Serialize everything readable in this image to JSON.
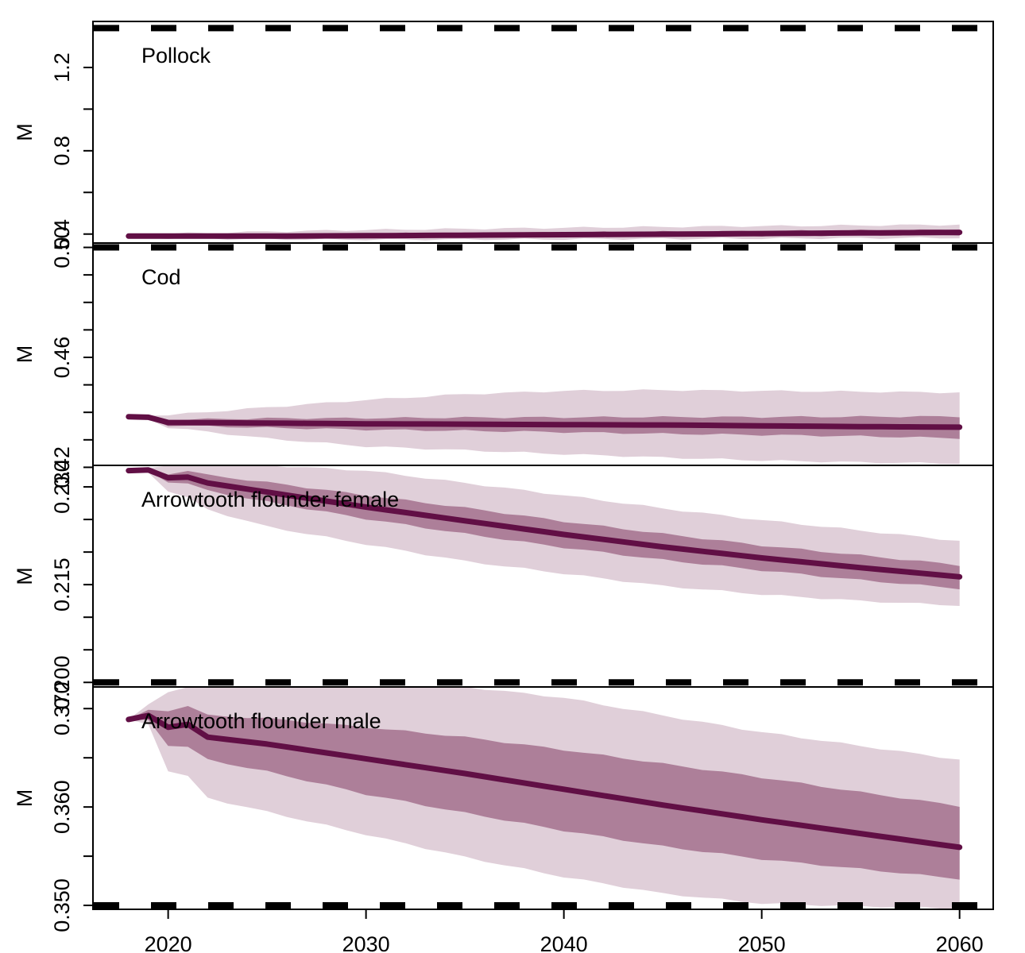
{
  "chart_data": {
    "type": "line",
    "xlim": [
      2016.2,
      2061.7
    ],
    "x_ticks": [
      2020,
      2030,
      2040,
      2050,
      2060
    ],
    "x_tick_labels": [
      "2020",
      "2030",
      "2040",
      "2050",
      "2060"
    ],
    "ylabel": "M",
    "colors": {
      "line": "#610f45",
      "inner_band": "#ad7f99",
      "outer_band": "#e0cfd9",
      "reference": "#000000",
      "frame": "#000000"
    },
    "panels": [
      {
        "label": "Pollock",
        "ylim": [
          0.357,
          1.421
        ],
        "y_ticks": [
          0.4,
          0.6,
          0.8,
          1.0,
          1.2
        ],
        "y_tick_labels": [
          "0.4",
          "",
          "0.8",
          "",
          "1.2"
        ],
        "reference_lines": [
          1.389
        ],
        "years": [
          2018,
          2024,
          2030,
          2036,
          2042,
          2048,
          2054,
          2060
        ],
        "median": [
          0.39,
          0.39,
          0.392,
          0.395,
          0.398,
          0.401,
          0.405,
          0.408
        ],
        "inner_lower": [
          0.385,
          0.384,
          0.385,
          0.387,
          0.389,
          0.391,
          0.394,
          0.396
        ],
        "inner_upper": [
          0.395,
          0.398,
          0.402,
          0.405,
          0.409,
          0.413,
          0.417,
          0.42
        ],
        "outer_lower": [
          0.382,
          0.376,
          0.373,
          0.374,
          0.376,
          0.378,
          0.38,
          0.382
        ],
        "outer_upper": [
          0.398,
          0.41,
          0.42,
          0.426,
          0.432,
          0.437,
          0.441,
          0.445
        ]
      },
      {
        "label": "Cod",
        "ylim": [
          0.4207,
          0.5016
        ],
        "y_ticks": [
          0.42,
          0.43,
          0.44,
          0.45,
          0.46,
          0.47,
          0.48,
          0.49,
          0.5
        ],
        "y_tick_labels": [
          "0.42",
          "",
          "",
          "",
          "0.46",
          "",
          "",
          "",
          "0.50"
        ],
        "reference_lines": [
          0.5
        ],
        "years": [
          2018,
          2019,
          2020,
          2025,
          2030,
          2035,
          2040,
          2045,
          2050,
          2055,
          2060
        ],
        "median": [
          0.4384,
          0.4382,
          0.4363,
          0.4361,
          0.4358,
          0.4357,
          0.4355,
          0.4354,
          0.4351,
          0.4348,
          0.4346
        ],
        "inner_lower": [
          0.4384,
          0.4378,
          0.4353,
          0.4344,
          0.4337,
          0.4333,
          0.4328,
          0.4322,
          0.4318,
          0.4313,
          0.4306
        ],
        "inner_upper": [
          0.4384,
          0.4386,
          0.4373,
          0.4378,
          0.4379,
          0.4381,
          0.4382,
          0.4383,
          0.4383,
          0.4384,
          0.4385
        ],
        "outer_lower": [
          0.4384,
          0.4375,
          0.4345,
          0.4305,
          0.4276,
          0.4262,
          0.4248,
          0.4236,
          0.4225,
          0.4218,
          0.4214
        ],
        "outer_upper": [
          0.4384,
          0.4391,
          0.439,
          0.4418,
          0.4445,
          0.4466,
          0.4478,
          0.4481,
          0.4478,
          0.4475,
          0.4472
        ]
      },
      {
        "label": "Arrowtooth flounder female",
        "ylim": [
          0.1993,
          0.2333
        ],
        "y_ticks": [
          0.2,
          0.205,
          0.21,
          0.215,
          0.22,
          0.225,
          0.23
        ],
        "y_tick_labels": [
          "0.200",
          "",
          "",
          "0.215",
          "",
          "",
          "0.230"
        ],
        "reference_lines": [
          0.2
        ],
        "years": [
          2018,
          2019,
          2020,
          2021,
          2022,
          2025,
          2030,
          2035,
          2040,
          2045,
          2050,
          2055,
          2060
        ],
        "median": [
          0.2325,
          0.2326,
          0.2314,
          0.2315,
          0.2306,
          0.2292,
          0.2269,
          0.2248,
          0.2227,
          0.2208,
          0.2191,
          0.2176,
          0.2162
        ],
        "inner_lower": [
          0.2325,
          0.2324,
          0.2308,
          0.2305,
          0.2294,
          0.2277,
          0.2251,
          0.2228,
          0.2207,
          0.2188,
          0.2172,
          0.2157,
          0.2144
        ],
        "inner_upper": [
          0.2325,
          0.2328,
          0.232,
          0.2325,
          0.2318,
          0.2307,
          0.2287,
          0.2268,
          0.2247,
          0.2228,
          0.221,
          0.2195,
          0.218
        ],
        "outer_lower": [
          0.2325,
          0.2322,
          0.2294,
          0.2283,
          0.2265,
          0.2239,
          0.2212,
          0.2186,
          0.2167,
          0.2148,
          0.2135,
          0.2125,
          0.2118
        ],
        "outer_upper": [
          0.2325,
          0.233,
          0.2333,
          0.2333,
          0.2333,
          0.2333,
          0.2325,
          0.2306,
          0.2287,
          0.2267,
          0.2249,
          0.2233,
          0.2217
        ]
      },
      {
        "label": "Arrowtooth flounder male",
        "ylim": [
          0.3496,
          0.3722
        ],
        "y_ticks": [
          0.35,
          0.355,
          0.36,
          0.365,
          0.37
        ],
        "y_tick_labels": [
          "0.350",
          "",
          "0.360",
          "",
          "0.370"
        ],
        "reference_lines": [
          0.35
        ],
        "years": [
          2018,
          2019,
          2020,
          2021,
          2022,
          2025,
          2030,
          2035,
          2040,
          2045,
          2050,
          2055,
          2060
        ],
        "median": [
          0.3689,
          0.3693,
          0.3681,
          0.3684,
          0.3671,
          0.3664,
          0.3649,
          0.3634,
          0.3618,
          0.3602,
          0.3587,
          0.3573,
          0.3559
        ],
        "inner_lower": [
          0.3689,
          0.3688,
          0.3663,
          0.3661,
          0.3648,
          0.3636,
          0.3613,
          0.3594,
          0.3576,
          0.356,
          0.3547,
          0.3537,
          0.3527
        ],
        "inner_upper": [
          0.3689,
          0.3698,
          0.3698,
          0.3703,
          0.3693,
          0.369,
          0.3681,
          0.3671,
          0.3658,
          0.3644,
          0.363,
          0.3615,
          0.3601
        ],
        "outer_lower": [
          0.3689,
          0.3684,
          0.3637,
          0.3631,
          0.3609,
          0.3595,
          0.3572,
          0.3549,
          0.3529,
          0.3512,
          0.3502,
          0.3499,
          0.3497
        ],
        "outer_upper": [
          0.3689,
          0.3705,
          0.3717,
          0.3721,
          0.3722,
          0.3722,
          0.3722,
          0.3722,
          0.3711,
          0.3693,
          0.3676,
          0.3662,
          0.3648
        ]
      }
    ]
  }
}
